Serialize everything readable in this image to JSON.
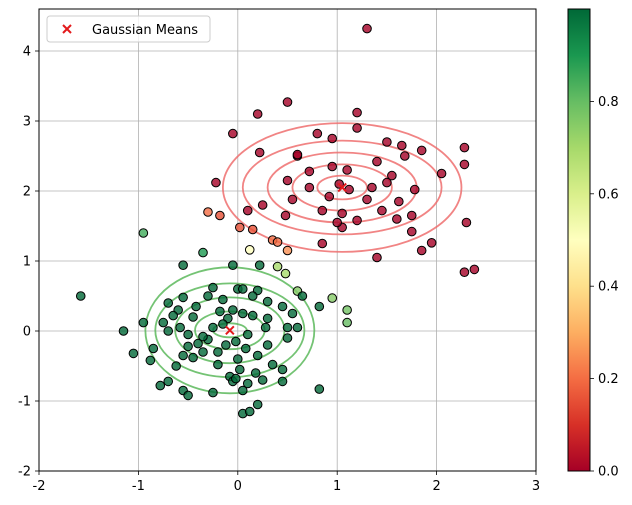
{
  "chart_data": {
    "type": "scatter",
    "xlim": [
      -2,
      3
    ],
    "ylim": [
      -2,
      4.6
    ],
    "x_ticks": [
      "-2",
      "-1",
      "0",
      "1",
      "2",
      "3"
    ],
    "y_ticks": [
      "-2",
      "-1",
      "0",
      "1",
      "2",
      "3",
      "4"
    ],
    "grid": true,
    "legend": {
      "placement": "top-left",
      "entries": [
        {
          "label": "Gaussian Means",
          "marker": "x",
          "color": "#e31a1c"
        }
      ]
    },
    "colorbar": {
      "range": [
        0,
        1
      ],
      "ticks": [
        "0.0",
        "0.2",
        "0.4",
        "0.6",
        "0.8"
      ],
      "colormap": "RdYlGn"
    },
    "means": [
      {
        "x": 1.05,
        "y": 2.05
      },
      {
        "x": -0.08,
        "y": 0.01
      }
    ],
    "contours": [
      {
        "center": [
          1.05,
          2.05
        ],
        "radii": [
          [
            0.25,
            0.17
          ],
          [
            0.5,
            0.33
          ],
          [
            0.75,
            0.5
          ],
          [
            1.0,
            0.67
          ],
          [
            1.2,
            0.92
          ]
        ],
        "color": "#ef6f6f"
      },
      {
        "center": [
          -0.08,
          0.01
        ],
        "radii": [
          [
            0.17,
            0.1
          ],
          [
            0.35,
            0.27
          ],
          [
            0.55,
            0.47
          ],
          [
            0.75,
            0.67
          ],
          [
            0.85,
            0.9
          ]
        ],
        "color": "#5cb85c"
      }
    ],
    "points": [
      {
        "x": 1.3,
        "y": 4.32,
        "v": 0.0
      },
      {
        "x": 0.5,
        "y": 3.27,
        "v": 0.0
      },
      {
        "x": 0.2,
        "y": 3.1,
        "v": 0.0
      },
      {
        "x": 1.2,
        "y": 3.12,
        "v": 0.0
      },
      {
        "x": -0.05,
        "y": 2.82,
        "v": 0.0
      },
      {
        "x": 1.2,
        "y": 2.9,
        "v": 0.0
      },
      {
        "x": 0.8,
        "y": 2.82,
        "v": 0.0
      },
      {
        "x": 1.5,
        "y": 2.7,
        "v": 0.0
      },
      {
        "x": 0.95,
        "y": 2.75,
        "v": 0.0
      },
      {
        "x": 1.65,
        "y": 2.65,
        "v": 0.0
      },
      {
        "x": 2.28,
        "y": 2.62,
        "v": 0.0
      },
      {
        "x": 0.22,
        "y": 2.55,
        "v": 0.0
      },
      {
        "x": 1.85,
        "y": 2.58,
        "v": 0.0
      },
      {
        "x": 0.6,
        "y": 2.5,
        "v": 0.0
      },
      {
        "x": 1.4,
        "y": 2.42,
        "v": 0.0
      },
      {
        "x": 1.68,
        "y": 2.5,
        "v": 0.0
      },
      {
        "x": 2.28,
        "y": 2.38,
        "v": 0.0
      },
      {
        "x": 0.95,
        "y": 2.35,
        "v": 0.0
      },
      {
        "x": 0.72,
        "y": 2.28,
        "v": 0.0
      },
      {
        "x": 1.1,
        "y": 2.3,
        "v": 0.0
      },
      {
        "x": 1.55,
        "y": 2.22,
        "v": 0.0
      },
      {
        "x": 2.05,
        "y": 2.25,
        "v": 0.0
      },
      {
        "x": -0.22,
        "y": 2.12,
        "v": 0.0
      },
      {
        "x": 0.5,
        "y": 2.15,
        "v": 0.0
      },
      {
        "x": 0.72,
        "y": 2.05,
        "v": 0.0
      },
      {
        "x": 1.02,
        "y": 2.1,
        "v": 0.0
      },
      {
        "x": 1.5,
        "y": 2.12,
        "v": 0.0
      },
      {
        "x": 1.78,
        "y": 2.02,
        "v": 0.0
      },
      {
        "x": 0.92,
        "y": 1.92,
        "v": 0.0
      },
      {
        "x": 1.3,
        "y": 1.88,
        "v": 0.0
      },
      {
        "x": 1.62,
        "y": 1.85,
        "v": 0.0
      },
      {
        "x": 0.55,
        "y": 1.88,
        "v": 0.0
      },
      {
        "x": 0.25,
        "y": 1.8,
        "v": 0.0
      },
      {
        "x": 0.85,
        "y": 1.72,
        "v": 0.0
      },
      {
        "x": 1.05,
        "y": 1.68,
        "v": 0.0
      },
      {
        "x": 1.45,
        "y": 1.72,
        "v": 0.0
      },
      {
        "x": 1.75,
        "y": 1.65,
        "v": 0.0
      },
      {
        "x": 0.1,
        "y": 1.72,
        "v": 0.0
      },
      {
        "x": 0.48,
        "y": 1.65,
        "v": 0.0
      },
      {
        "x": 1.2,
        "y": 1.58,
        "v": 0.0
      },
      {
        "x": 1.6,
        "y": 1.6,
        "v": 0.0
      },
      {
        "x": 1.05,
        "y": 1.48,
        "v": 0.0
      },
      {
        "x": 1.75,
        "y": 1.42,
        "v": 0.0
      },
      {
        "x": 2.3,
        "y": 1.55,
        "v": 0.0
      },
      {
        "x": 0.85,
        "y": 1.25,
        "v": 0.0
      },
      {
        "x": 1.85,
        "y": 1.15,
        "v": 0.0
      },
      {
        "x": 1.95,
        "y": 1.26,
        "v": 0.0
      },
      {
        "x": 1.4,
        "y": 1.05,
        "v": 0.0
      },
      {
        "x": 2.28,
        "y": 0.84,
        "v": 0.0
      },
      {
        "x": 2.38,
        "y": 0.88,
        "v": 0.0
      },
      {
        "x": 1.0,
        "y": 1.55,
        "v": 0.0
      },
      {
        "x": 0.6,
        "y": 2.52,
        "v": 0.0
      },
      {
        "x": 1.12,
        "y": 2.02,
        "v": 0.0
      },
      {
        "x": 1.35,
        "y": 2.05,
        "v": 0.0
      },
      {
        "x": -0.3,
        "y": 1.7,
        "v": 0.2
      },
      {
        "x": -0.18,
        "y": 1.65,
        "v": 0.15
      },
      {
        "x": 0.02,
        "y": 1.48,
        "v": 0.15
      },
      {
        "x": 0.15,
        "y": 1.45,
        "v": 0.15
      },
      {
        "x": 0.35,
        "y": 1.3,
        "v": 0.2
      },
      {
        "x": 0.4,
        "y": 1.27,
        "v": 0.2
      },
      {
        "x": 0.5,
        "y": 1.15,
        "v": 0.25
      },
      {
        "x": 0.12,
        "y": 1.16,
        "v": 0.5
      },
      {
        "x": -0.95,
        "y": 1.4,
        "v": 0.85
      },
      {
        "x": -0.35,
        "y": 1.12,
        "v": 0.9
      },
      {
        "x": 0.4,
        "y": 0.92,
        "v": 0.7
      },
      {
        "x": 0.48,
        "y": 0.82,
        "v": 0.7
      },
      {
        "x": 0.6,
        "y": 0.57,
        "v": 0.75
      },
      {
        "x": 0.95,
        "y": 0.47,
        "v": 0.75
      },
      {
        "x": 1.1,
        "y": 0.3,
        "v": 0.78
      },
      {
        "x": 1.1,
        "y": 0.12,
        "v": 0.8
      },
      {
        "x": 0.65,
        "y": 0.5,
        "v": 1.0
      },
      {
        "x": 0.22,
        "y": 0.94,
        "v": 1.0
      },
      {
        "x": -1.58,
        "y": 0.5,
        "v": 1.0
      },
      {
        "x": -0.55,
        "y": 0.94,
        "v": 1.0
      },
      {
        "x": -0.05,
        "y": 0.94,
        "v": 1.0
      },
      {
        "x": -1.15,
        "y": 0.0,
        "v": 1.0
      },
      {
        "x": -0.95,
        "y": 0.12,
        "v": 1.0
      },
      {
        "x": -1.05,
        "y": -0.32,
        "v": 1.0
      },
      {
        "x": -0.88,
        "y": -0.42,
        "v": 1.0
      },
      {
        "x": -0.85,
        "y": -0.25,
        "v": 1.0
      },
      {
        "x": -0.75,
        "y": 0.12,
        "v": 1.0
      },
      {
        "x": -0.7,
        "y": 0.4,
        "v": 1.0
      },
      {
        "x": -0.6,
        "y": 0.3,
        "v": 1.0
      },
      {
        "x": -0.55,
        "y": 0.48,
        "v": 1.0
      },
      {
        "x": -0.65,
        "y": 0.22,
        "v": 1.0
      },
      {
        "x": -0.58,
        "y": 0.05,
        "v": 1.0
      },
      {
        "x": -0.45,
        "y": 0.2,
        "v": 1.0
      },
      {
        "x": -0.5,
        "y": -0.05,
        "v": 1.0
      },
      {
        "x": -0.42,
        "y": 0.35,
        "v": 1.0
      },
      {
        "x": -0.3,
        "y": 0.5,
        "v": 1.0
      },
      {
        "x": -0.25,
        "y": 0.62,
        "v": 1.0
      },
      {
        "x": -0.15,
        "y": 0.45,
        "v": 1.0
      },
      {
        "x": 0.0,
        "y": 0.6,
        "v": 1.0
      },
      {
        "x": 0.05,
        "y": 0.6,
        "v": 1.0
      },
      {
        "x": 0.2,
        "y": 0.58,
        "v": 1.0
      },
      {
        "x": 0.15,
        "y": 0.5,
        "v": 1.0
      },
      {
        "x": 0.3,
        "y": 0.42,
        "v": 1.0
      },
      {
        "x": 0.45,
        "y": 0.35,
        "v": 1.0
      },
      {
        "x": 0.55,
        "y": 0.25,
        "v": 1.0
      },
      {
        "x": 0.6,
        "y": 0.05,
        "v": 1.0
      },
      {
        "x": 0.5,
        "y": -0.1,
        "v": 1.0
      },
      {
        "x": 0.3,
        "y": 0.18,
        "v": 1.0
      },
      {
        "x": 0.15,
        "y": 0.22,
        "v": 1.0
      },
      {
        "x": 0.05,
        "y": 0.25,
        "v": 1.0
      },
      {
        "x": -0.05,
        "y": 0.3,
        "v": 1.0
      },
      {
        "x": -0.1,
        "y": 0.18,
        "v": 1.0
      },
      {
        "x": -0.18,
        "y": 0.28,
        "v": 1.0
      },
      {
        "x": -0.25,
        "y": 0.05,
        "v": 1.0
      },
      {
        "x": -0.3,
        "y": -0.12,
        "v": 1.0
      },
      {
        "x": -0.4,
        "y": -0.18,
        "v": 1.0
      },
      {
        "x": -0.35,
        "y": -0.3,
        "v": 1.0
      },
      {
        "x": -0.5,
        "y": -0.22,
        "v": 1.0
      },
      {
        "x": -0.55,
        "y": -0.35,
        "v": 1.0
      },
      {
        "x": -0.62,
        "y": -0.5,
        "v": 1.0
      },
      {
        "x": -0.45,
        "y": -0.38,
        "v": 1.0
      },
      {
        "x": -0.2,
        "y": -0.3,
        "v": 1.0
      },
      {
        "x": -0.12,
        "y": -0.2,
        "v": 1.0
      },
      {
        "x": -0.02,
        "y": -0.15,
        "v": 1.0
      },
      {
        "x": 0.08,
        "y": -0.25,
        "v": 1.0
      },
      {
        "x": 0.2,
        "y": -0.35,
        "v": 1.0
      },
      {
        "x": 0.35,
        "y": -0.48,
        "v": 1.0
      },
      {
        "x": 0.18,
        "y": -0.6,
        "v": 1.0
      },
      {
        "x": 0.02,
        "y": -0.55,
        "v": 1.0
      },
      {
        "x": -0.08,
        "y": -0.65,
        "v": 1.0
      },
      {
        "x": -0.2,
        "y": -0.48,
        "v": 1.0
      },
      {
        "x": -0.7,
        "y": -0.72,
        "v": 1.0
      },
      {
        "x": -0.78,
        "y": -0.78,
        "v": 1.0
      },
      {
        "x": -0.55,
        "y": -0.85,
        "v": 1.0
      },
      {
        "x": -0.5,
        "y": -0.92,
        "v": 1.0
      },
      {
        "x": -0.25,
        "y": -0.88,
        "v": 1.0
      },
      {
        "x": -0.05,
        "y": -0.72,
        "v": 1.0
      },
      {
        "x": 0.1,
        "y": -0.75,
        "v": 1.0
      },
      {
        "x": 0.25,
        "y": -0.7,
        "v": 1.0
      },
      {
        "x": 0.45,
        "y": -0.72,
        "v": 1.0
      },
      {
        "x": 0.45,
        "y": -0.55,
        "v": 1.0
      },
      {
        "x": 0.82,
        "y": -0.83,
        "v": 1.0
      },
      {
        "x": 0.05,
        "y": -0.85,
        "v": 1.0
      },
      {
        "x": 0.2,
        "y": -1.05,
        "v": 1.0
      },
      {
        "x": 0.05,
        "y": -1.18,
        "v": 1.0
      },
      {
        "x": 0.12,
        "y": -1.15,
        "v": 1.0
      },
      {
        "x": -0.02,
        "y": -0.68,
        "v": 1.0
      },
      {
        "x": 0.3,
        "y": -0.2,
        "v": 1.0
      },
      {
        "x": 0.1,
        "y": -0.05,
        "v": 1.0
      },
      {
        "x": -0.7,
        "y": 0.0,
        "v": 1.0
      },
      {
        "x": -0.35,
        "y": -0.08,
        "v": 1.0
      },
      {
        "x": 0.0,
        "y": -0.4,
        "v": 1.0
      },
      {
        "x": 0.28,
        "y": 0.05,
        "v": 1.0
      },
      {
        "x": 0.82,
        "y": 0.35,
        "v": 1.0
      },
      {
        "x": 0.5,
        "y": 0.05,
        "v": 1.0
      },
      {
        "x": -0.15,
        "y": 0.1,
        "v": 1.0
      }
    ]
  }
}
